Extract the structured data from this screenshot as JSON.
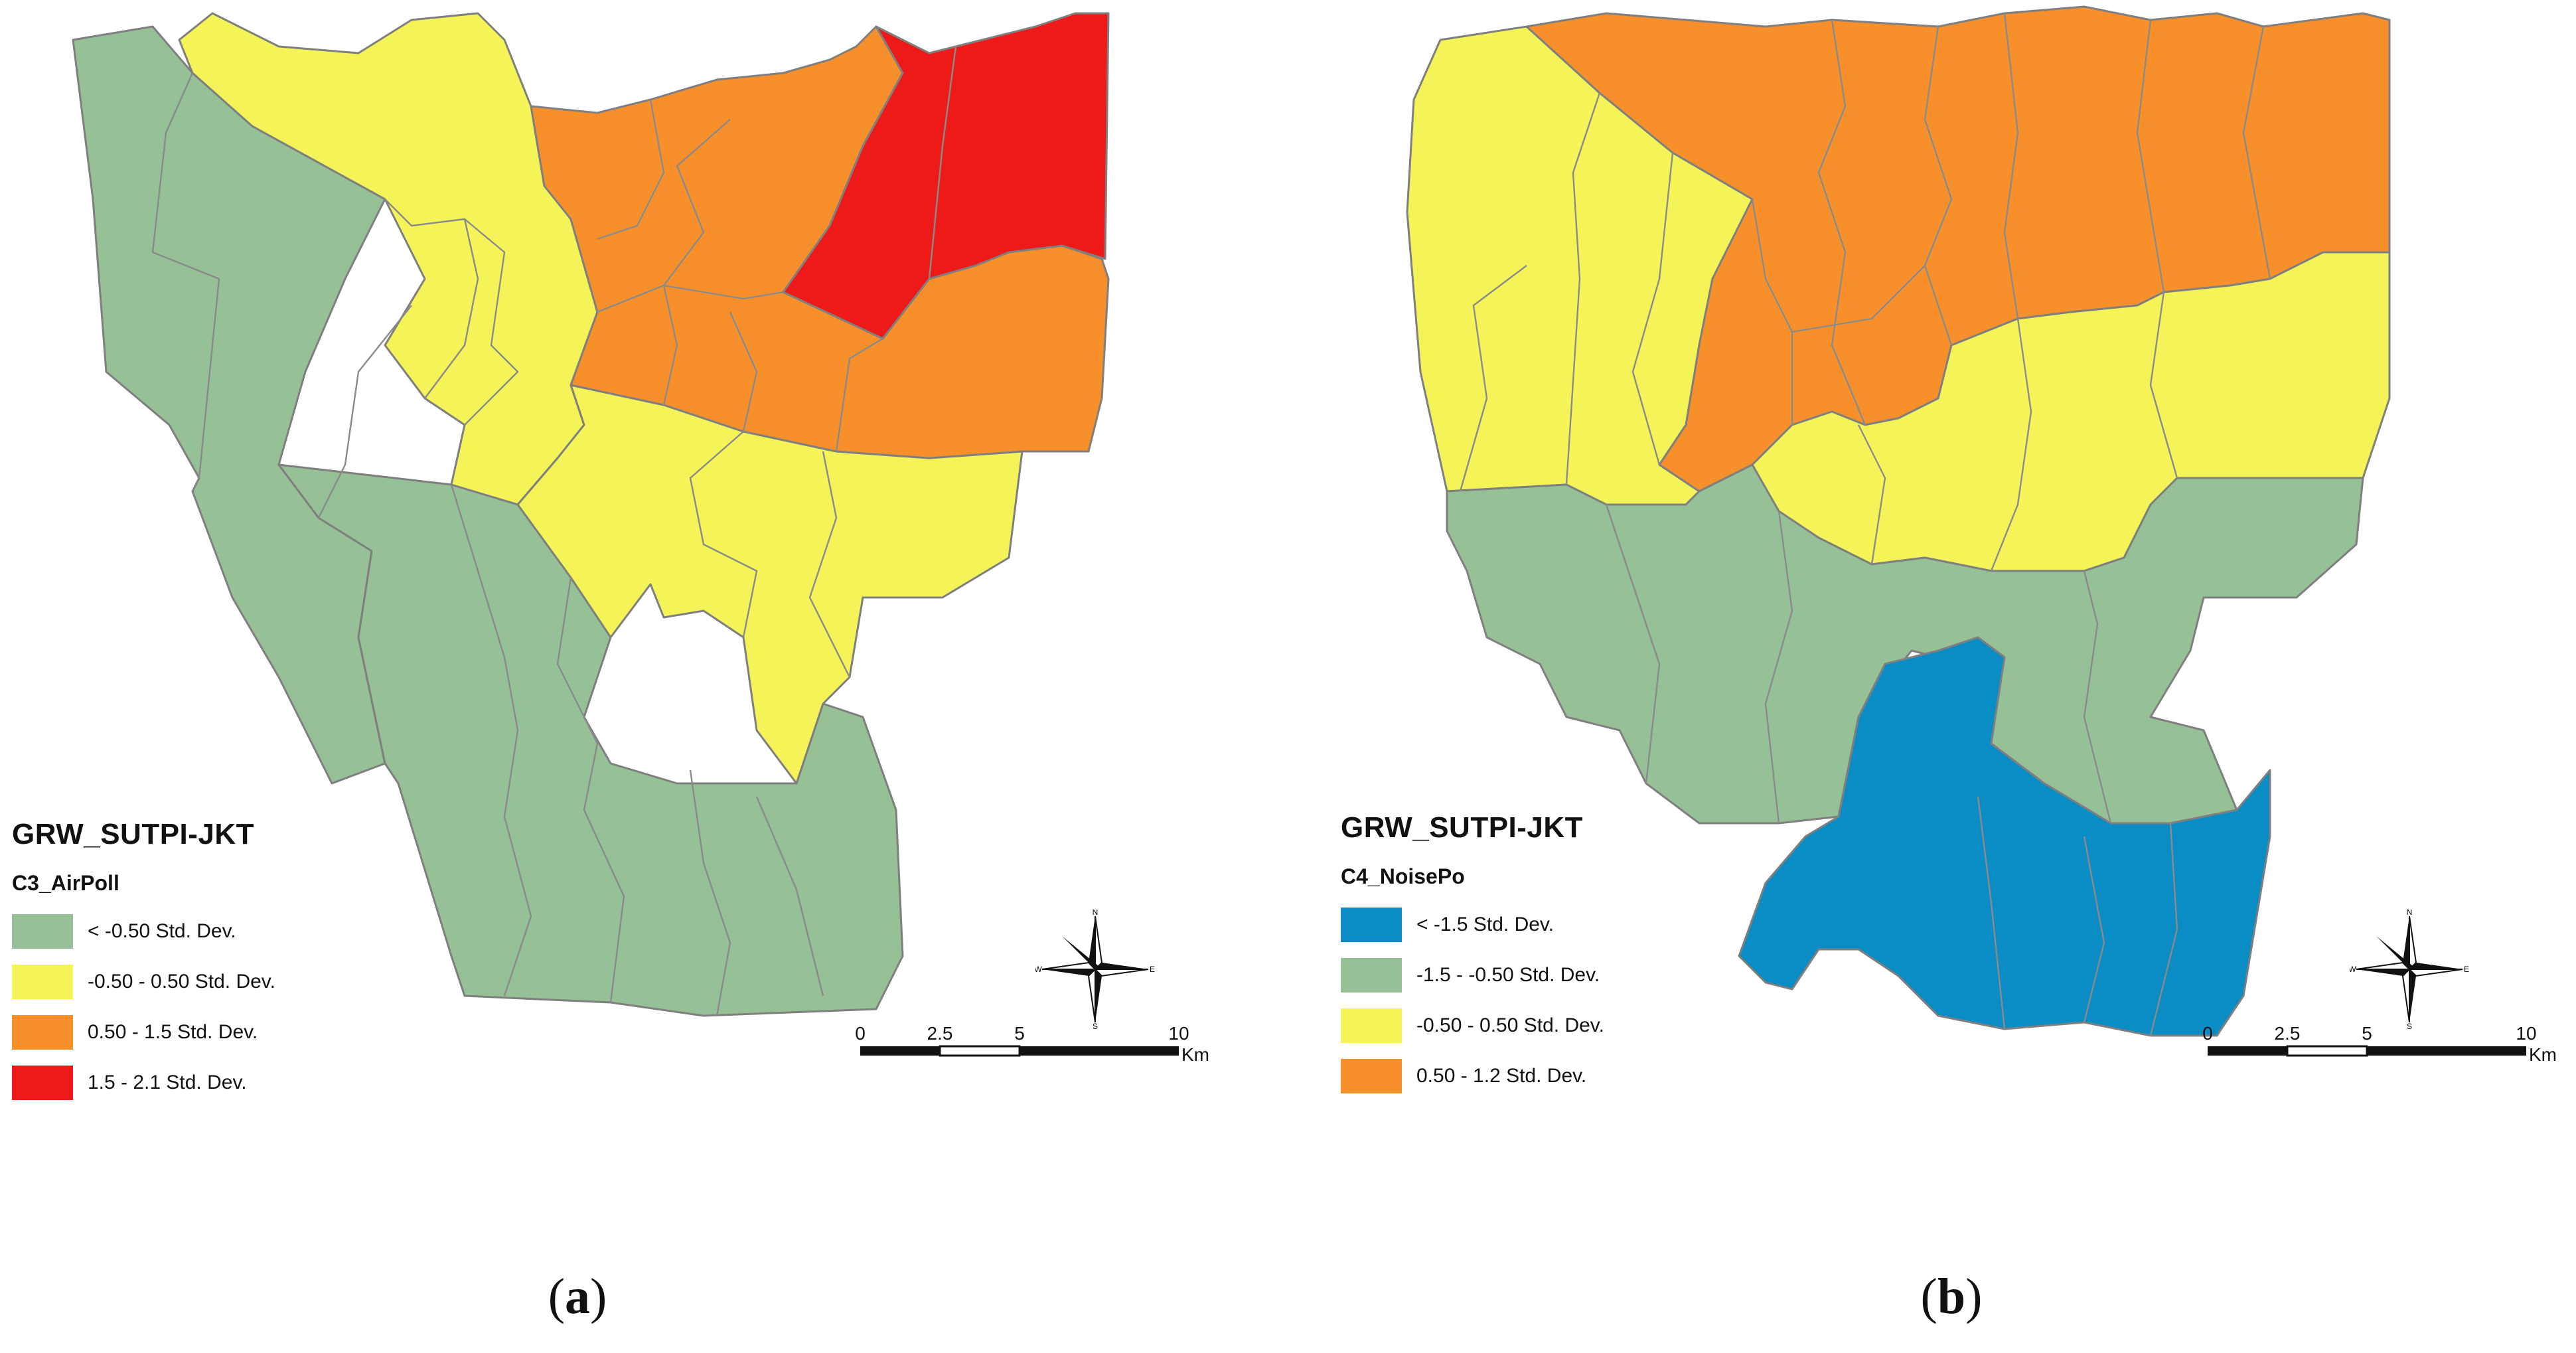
{
  "panels": [
    {
      "caption_open": "(",
      "caption_letter": "a",
      "caption_close": ")",
      "legend": {
        "title": "GRW_SUTPI-JKT",
        "field": "C3_AirPoll",
        "classes": [
          {
            "label": "< -0.50 Std. Dev.",
            "color": "#96c096"
          },
          {
            "label": "-0.50 - 0.50 Std. Dev.",
            "color": "#f4f458"
          },
          {
            "label": "0.50 - 1.5 Std. Dev.",
            "color": "#f7902b"
          },
          {
            "label": "1.5 - 2.1 Std. Dev.",
            "color": "#ee1a1a"
          }
        ]
      },
      "compass": {
        "n": "N",
        "s": "S",
        "e": "E",
        "w": "W"
      },
      "scale": {
        "ticks": [
          "0",
          "2.5",
          "5",
          "10"
        ],
        "unit": "Km"
      }
    },
    {
      "caption_open": "(",
      "caption_letter": "b",
      "caption_close": ")",
      "legend": {
        "title": "GRW_SUTPI-JKT",
        "field": "C4_NoisePo",
        "classes": [
          {
            "label": "< -1.5 Std. Dev.",
            "color": "#0a8cc4"
          },
          {
            "label": "-1.5 - -0.50 Std. Dev.",
            "color": "#96c096"
          },
          {
            "label": "-0.50 - 0.50 Std. Dev.",
            "color": "#f4f458"
          },
          {
            "label": "0.50 - 1.2 Std. Dev.",
            "color": "#f7902b"
          }
        ]
      },
      "compass": {
        "n": "N",
        "s": "S",
        "e": "E",
        "w": "W"
      },
      "scale": {
        "ticks": [
          "0",
          "2.5",
          "5",
          "10"
        ],
        "unit": "Km"
      }
    }
  ]
}
